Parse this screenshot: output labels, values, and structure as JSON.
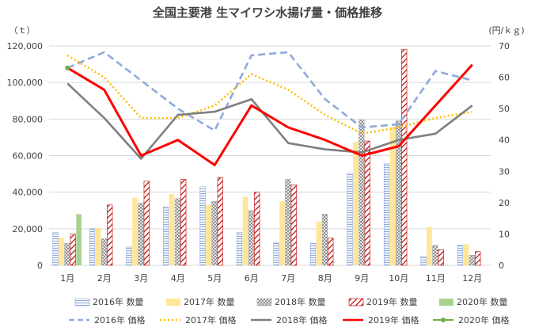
{
  "chart_data": {
    "type": "bar",
    "title": "全国主要港 生マイワシ水揚げ量・価格推移",
    "ylabel_left": "（ｔ）",
    "ylabel_right": "(円/ｋｇ)",
    "categories": [
      "1月",
      "2月",
      "3月",
      "4月",
      "5月",
      "6月",
      "7月",
      "8月",
      "9月",
      "10月",
      "11月",
      "12月"
    ],
    "ylim_left": [
      0,
      120000
    ],
    "yticks_left": [
      "0",
      "20,000",
      "40,000",
      "60,000",
      "80,000",
      "100,000",
      "120,000"
    ],
    "ylim_right": [
      0,
      70
    ],
    "yticks_right": [
      "0",
      "10",
      "20",
      "30",
      "40",
      "50",
      "60",
      "70"
    ],
    "bar_series": [
      {
        "name": "2016年 数量",
        "values": [
          18000,
          20000,
          10000,
          32000,
          43000,
          18000,
          12500,
          12000,
          50500,
          55500,
          5000,
          11000
        ],
        "color": "#8eaadb",
        "pattern": "hlines"
      },
      {
        "name": "2017年 数量",
        "values": [
          15000,
          20500,
          37000,
          39000,
          33000,
          37500,
          35000,
          24000,
          67500,
          75500,
          21000,
          11500
        ],
        "color": "#ffe699",
        "pattern": "solid"
      },
      {
        "name": "2018年 数量",
        "values": [
          12000,
          14500,
          34000,
          36500,
          35000,
          30000,
          47000,
          28000,
          79500,
          79000,
          11000,
          5500
        ],
        "color": "#a6a6a6",
        "pattern": "grid"
      },
      {
        "name": "2019年 数量",
        "values": [
          17000,
          33000,
          46000,
          47000,
          48000,
          40000,
          44000,
          15000,
          68000,
          118000,
          8500,
          7500
        ],
        "color": "#c00000",
        "pattern": "diag"
      },
      {
        "name": "2020年 数量",
        "values": [
          28000,
          null,
          null,
          null,
          null,
          null,
          null,
          null,
          null,
          null,
          null,
          null
        ],
        "color": "#a9d18e",
        "pattern": "solid"
      }
    ],
    "line_series": [
      {
        "name": "2016年 価格",
        "values": [
          63,
          68,
          59,
          50,
          43,
          67,
          68,
          53,
          44,
          45,
          62,
          59
        ],
        "color": "#8eaadb",
        "dash": "dash"
      },
      {
        "name": "2017年 価格",
        "values": [
          67,
          60,
          47,
          47,
          51,
          61,
          56,
          48,
          42,
          44,
          47,
          49
        ],
        "color": "#ffc000",
        "dash": "dot"
      },
      {
        "name": "2018年 価格",
        "values": [
          58,
          47,
          34,
          48,
          49,
          53,
          39,
          37,
          36,
          40,
          42,
          51
        ],
        "color": "#7f7f7f",
        "dash": "solid"
      },
      {
        "name": "2019年 価格",
        "values": [
          63,
          56,
          35,
          40,
          32,
          51,
          44,
          40,
          35,
          38,
          51,
          64
        ],
        "color": "#ff0000",
        "dash": "solid"
      },
      {
        "name": "2020年 価格",
        "values": [
          63,
          null,
          null,
          null,
          null,
          null,
          null,
          null,
          null,
          null,
          null,
          null
        ],
        "color": "#70ad47",
        "dash": "marker"
      }
    ],
    "grid": true,
    "legend_position": "bottom"
  }
}
